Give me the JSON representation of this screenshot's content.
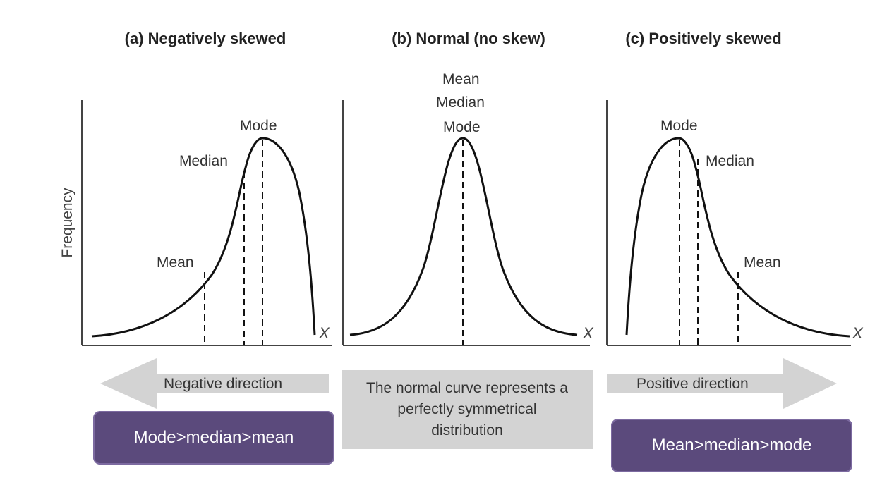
{
  "panels": {
    "negative": {
      "title": "(a) Negatively skewed",
      "labels": {
        "mode": "Mode",
        "median": "Median",
        "mean": "Mean"
      },
      "x_axis": "X",
      "direction": "Negative direction",
      "relation": "Mode>median>mean"
    },
    "normal": {
      "title": "(b) Normal (no skew)",
      "labels": {
        "mean": "Mean",
        "median": "Median",
        "mode": "Mode"
      },
      "x_axis": "X",
      "note": "The normal curve represents a perfectly symmetrical distribution"
    },
    "positive": {
      "title": "(c) Positively skewed",
      "labels": {
        "mode": "Mode",
        "median": "Median",
        "mean": "Mean"
      },
      "x_axis": "X",
      "direction": "Positive direction",
      "relation": "Mean>median>mode"
    }
  },
  "y_axis": "Frequency",
  "colors": {
    "curve": "#111111",
    "arrow": "#d3d3d3",
    "badge": "#5b4a7c",
    "badge_text": "#ffffff"
  }
}
